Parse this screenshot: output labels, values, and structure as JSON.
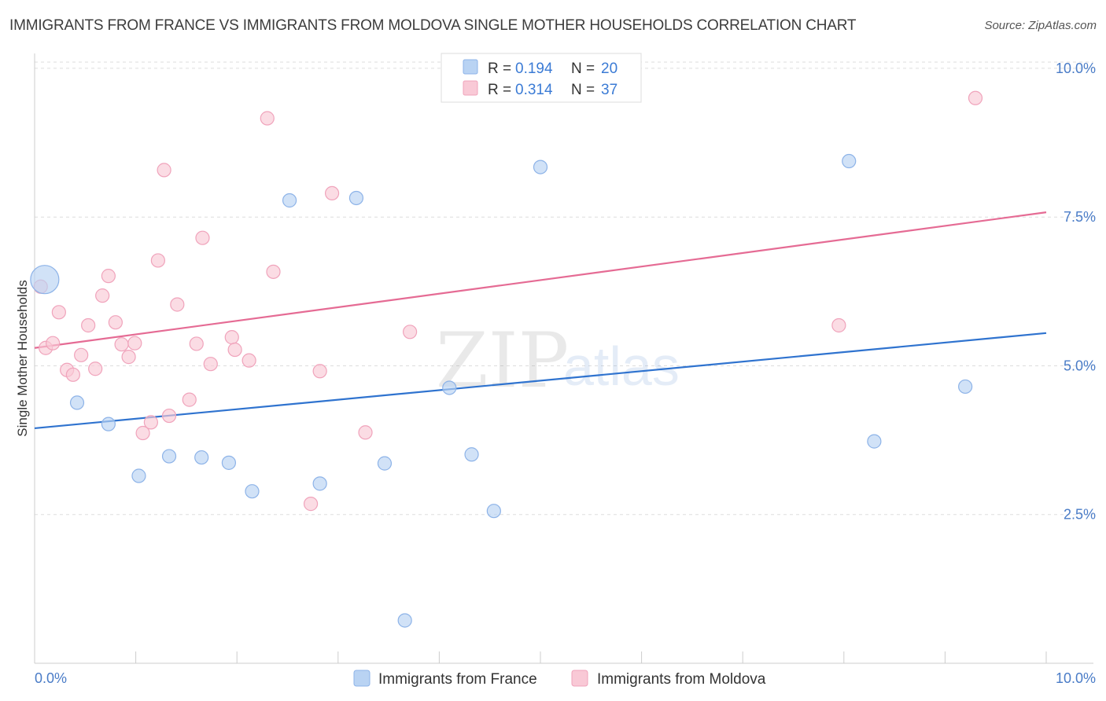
{
  "title": "IMMIGRANTS FROM FRANCE VS IMMIGRANTS FROM MOLDOVA SINGLE MOTHER HOUSEHOLDS CORRELATION CHART",
  "source": "Source: ZipAtlas.com",
  "watermark": {
    "zip": "ZIP",
    "atlas": "atlas"
  },
  "colors": {
    "france_fill": "#b9d3f3",
    "france_stroke": "#8db3e8",
    "france_line": "#2f73cf",
    "moldova_fill": "#f9c9d6",
    "moldova_stroke": "#f0a3bb",
    "moldova_line": "#e56b94",
    "grid": "#dddddd",
    "tick_label": "#4a7cc7"
  },
  "legend": {
    "france": {
      "r_label": "R = ",
      "r_value": "0.194",
      "n_label": "N = ",
      "n_value": "20"
    },
    "moldova": {
      "r_label": "R = ",
      "r_value": "0.314",
      "n_label": "N = ",
      "n_value": "37"
    }
  },
  "chart_data": {
    "type": "scatter",
    "title": "IMMIGRANTS FROM FRANCE VS IMMIGRANTS FROM MOLDOVA SINGLE MOTHER HOUSEHOLDS CORRELATION CHART",
    "xlabel": "",
    "ylabel": "Single Mother Households",
    "xlim": [
      0,
      10
    ],
    "ylim": [
      0,
      10.25
    ],
    "x_tick_labels": [
      "0.0%",
      "10.0%"
    ],
    "y_ticks": [
      2.5,
      5.0,
      7.5,
      10.0
    ],
    "y_tick_labels": [
      "2.5%",
      "5.0%",
      "7.5%",
      "10.0%"
    ],
    "grid": true,
    "legend_position": "top-center",
    "series": [
      {
        "name": "Immigrants from France",
        "color": "#b9d3f3",
        "trend": {
          "x": [
            0,
            10
          ],
          "y": [
            3.95,
            5.55
          ]
        },
        "points": [
          {
            "x": 0.1,
            "y": 6.45,
            "large": true
          },
          {
            "x": 0.42,
            "y": 4.38
          },
          {
            "x": 0.73,
            "y": 4.02
          },
          {
            "x": 1.03,
            "y": 3.15
          },
          {
            "x": 1.33,
            "y": 3.48
          },
          {
            "x": 1.65,
            "y": 3.46
          },
          {
            "x": 1.92,
            "y": 3.37
          },
          {
            "x": 2.15,
            "y": 2.89
          },
          {
            "x": 2.52,
            "y": 7.78
          },
          {
            "x": 2.82,
            "y": 3.02
          },
          {
            "x": 3.18,
            "y": 7.82
          },
          {
            "x": 3.46,
            "y": 3.36
          },
          {
            "x": 3.66,
            "y": 0.72
          },
          {
            "x": 4.1,
            "y": 4.63
          },
          {
            "x": 4.32,
            "y": 3.51
          },
          {
            "x": 4.54,
            "y": 2.56
          },
          {
            "x": 5.0,
            "y": 8.34
          },
          {
            "x": 8.05,
            "y": 8.44
          },
          {
            "x": 8.3,
            "y": 3.73
          },
          {
            "x": 9.2,
            "y": 4.65
          }
        ]
      },
      {
        "name": "Immigrants from Moldova",
        "color": "#f9c9d6",
        "trend": {
          "x": [
            0,
            10
          ],
          "y": [
            5.3,
            7.58
          ]
        },
        "points": [
          {
            "x": 0.06,
            "y": 6.33
          },
          {
            "x": 0.11,
            "y": 5.3
          },
          {
            "x": 0.18,
            "y": 5.38
          },
          {
            "x": 0.24,
            "y": 5.9
          },
          {
            "x": 0.32,
            "y": 4.93
          },
          {
            "x": 0.38,
            "y": 4.85
          },
          {
            "x": 0.46,
            "y": 5.18
          },
          {
            "x": 0.53,
            "y": 5.68
          },
          {
            "x": 0.6,
            "y": 4.95
          },
          {
            "x": 0.67,
            "y": 6.18
          },
          {
            "x": 0.73,
            "y": 6.51
          },
          {
            "x": 0.8,
            "y": 5.73
          },
          {
            "x": 0.86,
            "y": 5.36
          },
          {
            "x": 0.93,
            "y": 5.15
          },
          {
            "x": 0.99,
            "y": 5.38
          },
          {
            "x": 1.07,
            "y": 3.87
          },
          {
            "x": 1.15,
            "y": 4.05
          },
          {
            "x": 1.22,
            "y": 6.77
          },
          {
            "x": 1.28,
            "y": 8.29
          },
          {
            "x": 1.33,
            "y": 4.16
          },
          {
            "x": 1.41,
            "y": 6.03
          },
          {
            "x": 1.53,
            "y": 4.43
          },
          {
            "x": 1.6,
            "y": 5.37
          },
          {
            "x": 1.66,
            "y": 7.15
          },
          {
            "x": 1.74,
            "y": 5.03
          },
          {
            "x": 1.95,
            "y": 5.48
          },
          {
            "x": 1.98,
            "y": 5.27
          },
          {
            "x": 2.12,
            "y": 5.09
          },
          {
            "x": 2.3,
            "y": 9.16
          },
          {
            "x": 2.36,
            "y": 6.58
          },
          {
            "x": 2.73,
            "y": 2.68
          },
          {
            "x": 2.82,
            "y": 4.91
          },
          {
            "x": 2.94,
            "y": 7.9
          },
          {
            "x": 3.27,
            "y": 3.88
          },
          {
            "x": 3.71,
            "y": 5.57
          },
          {
            "x": 7.95,
            "y": 5.68
          },
          {
            "x": 9.3,
            "y": 9.5
          }
        ]
      }
    ]
  }
}
